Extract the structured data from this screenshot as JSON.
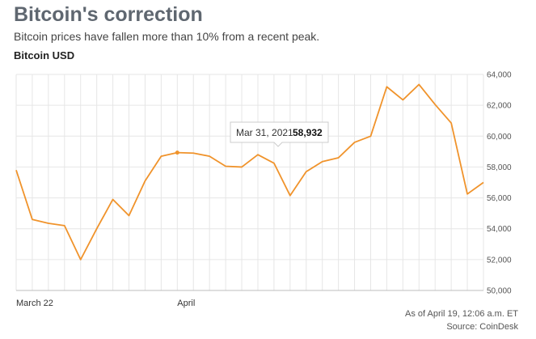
{
  "header": {
    "title": "Bitcoin's correction",
    "subtitle": "Bitcoin prices have fallen more than 10% from a recent peak.",
    "series_label": "Bitcoin USD"
  },
  "footer": {
    "as_of": "As of April 19, 12:06 a.m. ET",
    "source": "Source: CoinDesk"
  },
  "tooltip": {
    "date": "Mar 31, 2021",
    "value": "58,932"
  },
  "colors": {
    "line": "#f0932b",
    "grid": "#e6e6e6"
  },
  "chart_data": {
    "type": "line",
    "title": "Bitcoin's correction",
    "ylabel": "",
    "xlabel": "",
    "ylim": [
      50000,
      64000
    ],
    "yticks": [
      50000,
      52000,
      54000,
      56000,
      58000,
      60000,
      62000,
      64000
    ],
    "ytick_labels": [
      "50,000",
      "52,000",
      "54,000",
      "56,000",
      "58,000",
      "60,000",
      "62,000",
      "64,000"
    ],
    "x_start_label": "March 22",
    "xticks": [
      {
        "label": "March 22",
        "index": 0
      },
      {
        "label": "April",
        "index": 10
      }
    ],
    "grid": true,
    "highlight_index": 10,
    "series": [
      {
        "values": [
          57800,
          54600,
          54350,
          54200,
          52000,
          54000,
          55900,
          54850,
          57100,
          58700,
          58932,
          58900,
          58700,
          58050,
          58000,
          58800,
          58250,
          56150,
          57700,
          58350,
          58600,
          59600,
          60000,
          63200,
          62350,
          63350,
          62050,
          60850,
          56250,
          57000
        ]
      }
    ]
  }
}
